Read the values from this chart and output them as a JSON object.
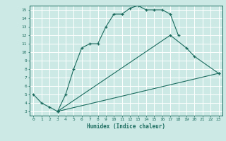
{
  "xlabel": "Humidex (Indice chaleur)",
  "bg_color": "#cce9e5",
  "grid_color": "#ffffff",
  "line_color": "#1a6b5e",
  "xlim": [
    -0.5,
    23.5
  ],
  "ylim": [
    2.5,
    15.5
  ],
  "xticks": [
    0,
    1,
    2,
    3,
    4,
    5,
    6,
    7,
    8,
    9,
    10,
    11,
    12,
    13,
    14,
    15,
    16,
    17,
    18,
    19,
    20,
    21,
    22,
    23
  ],
  "yticks": [
    3,
    4,
    5,
    6,
    7,
    8,
    9,
    10,
    11,
    12,
    13,
    14,
    15
  ],
  "curves": [
    {
      "x": [
        0,
        1,
        2,
        3,
        4,
        5,
        6,
        7,
        8,
        9,
        10,
        11,
        12,
        13,
        14,
        15,
        16,
        17,
        18
      ],
      "y": [
        5,
        4,
        3.5,
        3,
        5,
        8.0,
        10.5,
        11,
        11,
        13,
        14.5,
        14.5,
        15.2,
        15.5,
        15,
        15,
        15,
        14.5,
        12
      ]
    },
    {
      "x": [
        3,
        17,
        19,
        20,
        23
      ],
      "y": [
        3,
        12,
        10.5,
        9.5,
        7.5
      ]
    },
    {
      "x": [
        3,
        23
      ],
      "y": [
        3,
        7.5
      ]
    }
  ]
}
